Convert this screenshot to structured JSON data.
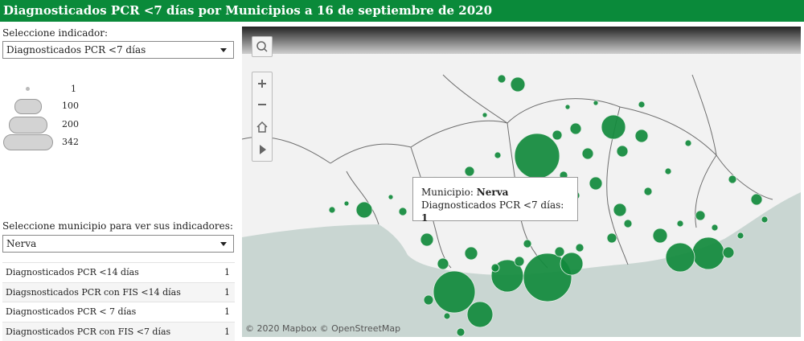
{
  "title": "Diagnosticados PCR <7 días por Municipios a 16 de septiembre de 2020",
  "indicator": {
    "label": "Seleccione indicador:",
    "selected": "Diagnosticados PCR <7 días"
  },
  "legend": {
    "sizes": [
      "1",
      "100",
      "200",
      "342"
    ]
  },
  "municipio": {
    "label": "Seleccione municipio para ver sus indicadores:",
    "selected": "Nerva"
  },
  "indicators_table": [
    {
      "name": "Diagnosticados PCR <14 días",
      "value": "1"
    },
    {
      "name": "Diagsnosticados PCR con FIS <14 días",
      "value": "1"
    },
    {
      "name": "Diagnosticados PCR < 7 días",
      "value": "1"
    },
    {
      "name": "Diagnosticados PCR con FIS <7 días",
      "value": "1"
    }
  ],
  "tooltip": {
    "municipio_label": "Municipio:",
    "municipio_value": "Nerva",
    "indicator_label": "Diagnosticados PCR <7 días:",
    "indicator_value": "1"
  },
  "map": {
    "attribution": "© 2020 Mapbox © OpenStreetMap",
    "controls": [
      "search-icon",
      "zoom-in-icon",
      "zoom-out-icon",
      "home-icon",
      "play-icon"
    ],
    "colors": {
      "bubble": "#118a3c",
      "sea": "#c9d6d2",
      "land": "#f3f3f3",
      "border": "#6e6e6e"
    }
  }
}
